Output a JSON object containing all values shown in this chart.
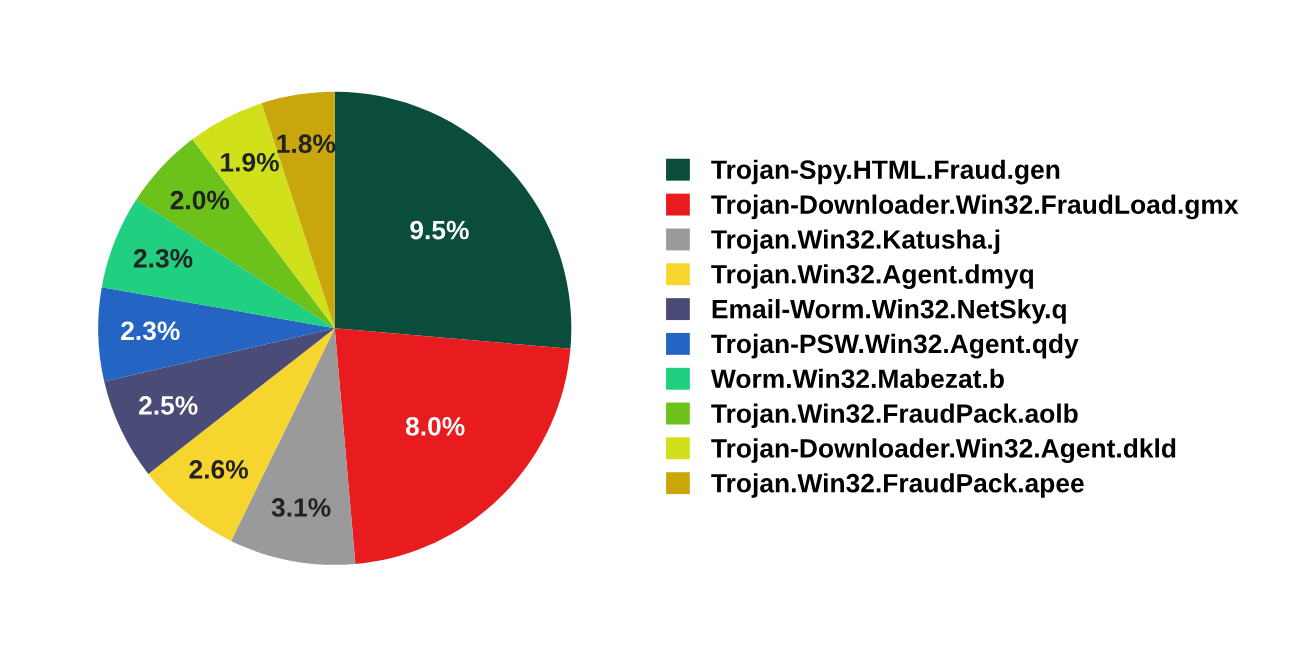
{
  "chart_data": {
    "type": "pie",
    "legend": "right",
    "value_labels": [
      "9.5%",
      "8.0%",
      "3.1%",
      "2.6%",
      "2.5%",
      "2.3%",
      "2.3%",
      "2.0%",
      "1.9%",
      "1.8%"
    ],
    "categories": [
      "Trojan-Spy.HTML.Fraud.gen",
      "Trojan-Downloader.Win32.FraudLoad.gmx",
      "Trojan.Win32.Katusha.j",
      "Trojan.Win32.Agent.dmyq",
      "Email-Worm.Win32.NetSky.q",
      "Trojan-PSW.Win32.Agent.qdy",
      "Worm.Win32.Mabezat.b",
      "Trojan.Win32.FraudPack.aolb",
      "Trojan-Downloader.Win32.Agent.dkld",
      "Trojan.Win32.FraudPack.apee"
    ],
    "values": [
      9.5,
      8.0,
      3.1,
      2.6,
      2.5,
      2.3,
      2.3,
      2.0,
      1.9,
      1.8
    ],
    "colors": [
      "#0b4d3c",
      "#e81c1f",
      "#9a9a9a",
      "#f7d52f",
      "#4b4b78",
      "#2464c2",
      "#20cf80",
      "#6cc11b",
      "#d0e01b",
      "#c9a60c"
    ]
  }
}
